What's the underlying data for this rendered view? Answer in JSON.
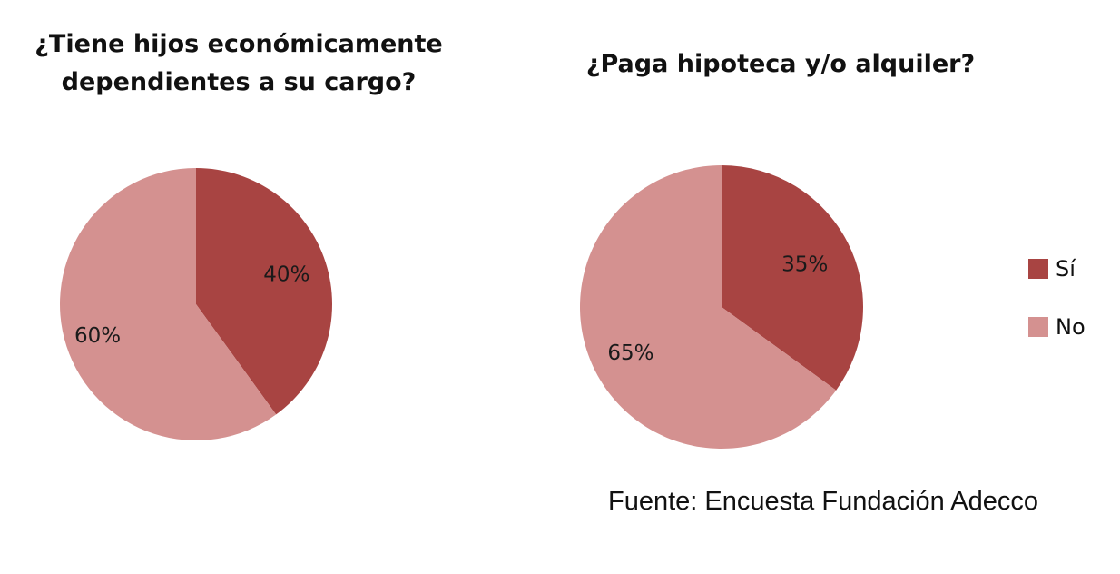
{
  "chart_data": [
    {
      "type": "pie",
      "title_lines": [
        "¿Tiene hijos económicamente",
        "dependientes a su cargo?"
      ],
      "categories": [
        "Sí",
        "No"
      ],
      "values": [
        40,
        60
      ],
      "labels": [
        "40%",
        "60%"
      ],
      "colors": [
        "#a84442",
        "#d49190"
      ]
    },
    {
      "type": "pie",
      "title_lines": [
        "¿Paga hipoteca y/o alquiler?"
      ],
      "categories": [
        "Sí",
        "No"
      ],
      "values": [
        35,
        65
      ],
      "labels": [
        "35%",
        "65%"
      ],
      "colors": [
        "#a84442",
        "#d49190"
      ]
    }
  ],
  "legend": {
    "position": "right",
    "items": [
      {
        "label": "Sí",
        "color": "#a84442"
      },
      {
        "label": "No",
        "color": "#d49190"
      }
    ]
  },
  "source": "Fuente: Encuesta Fundación Adecco"
}
